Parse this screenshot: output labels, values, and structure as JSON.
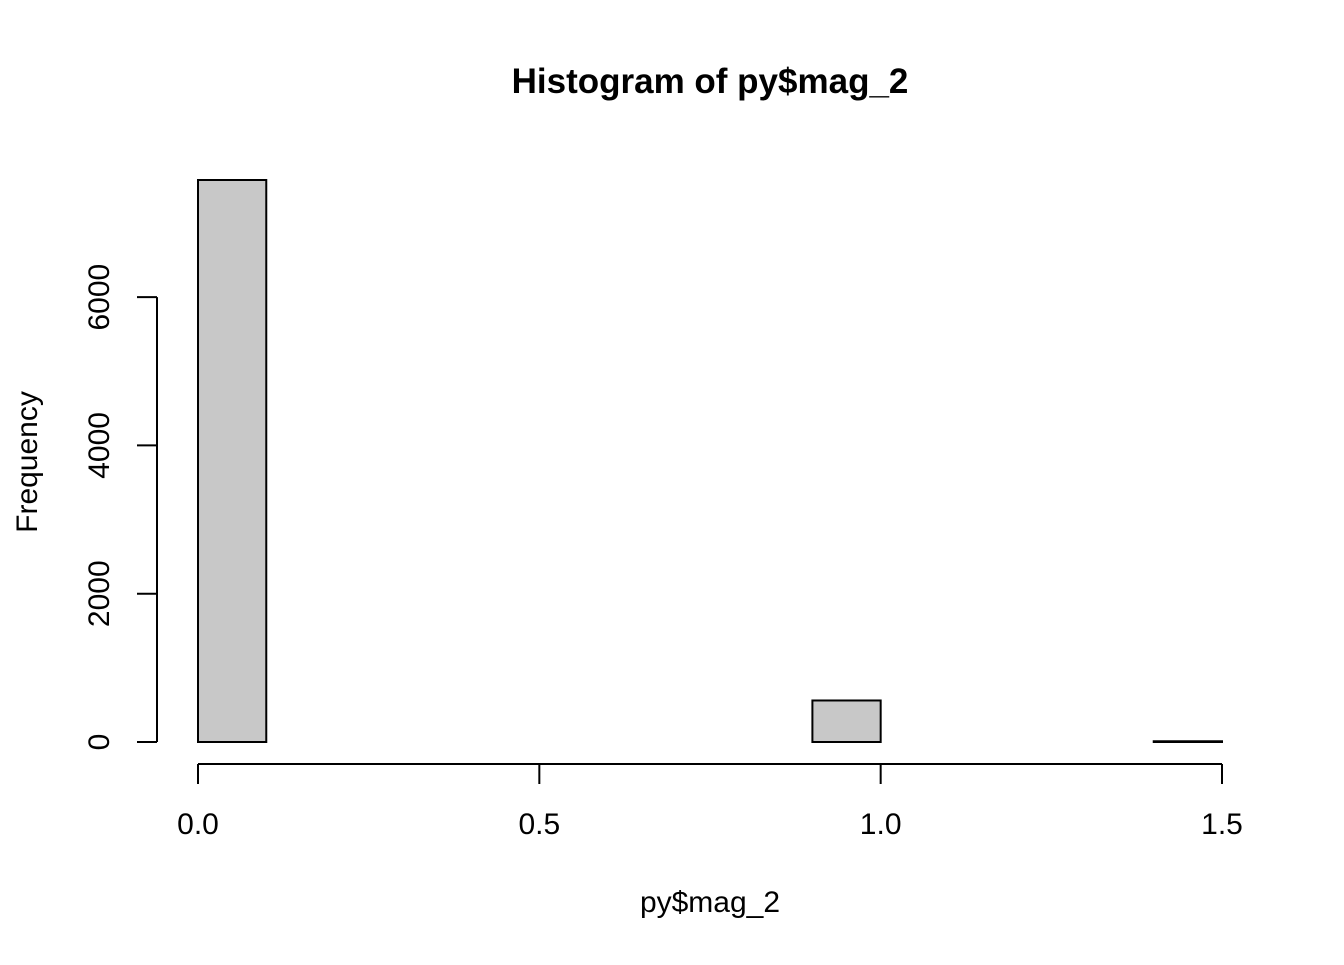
{
  "chart_data": {
    "type": "bar",
    "title": "Histogram of py$mag_2",
    "xlabel": "py$mag_2",
    "ylabel": "Frequency",
    "bin_edges": [
      0.0,
      0.1,
      0.2,
      0.3,
      0.4,
      0.5,
      0.6,
      0.7,
      0.8,
      0.9,
      1.0,
      1.1,
      1.2,
      1.3,
      1.4,
      1.5
    ],
    "values": [
      7580,
      0,
      0,
      0,
      0,
      0,
      0,
      0,
      0,
      560,
      0,
      0,
      0,
      0,
      10
    ],
    "xlim": [
      0.0,
      1.5
    ],
    "ylim": [
      0,
      7580
    ],
    "x_ticks": [
      0.0,
      0.5,
      1.0,
      1.5
    ],
    "x_tick_labels": [
      "0.0",
      "0.5",
      "1.0",
      "1.5"
    ],
    "y_ticks": [
      0,
      2000,
      4000,
      6000
    ],
    "y_tick_labels": [
      "0",
      "2000",
      "4000",
      "6000"
    ],
    "bar_fill": "#c8c8c8",
    "bar_stroke": "#000000",
    "grid": false,
    "legend": "none"
  }
}
